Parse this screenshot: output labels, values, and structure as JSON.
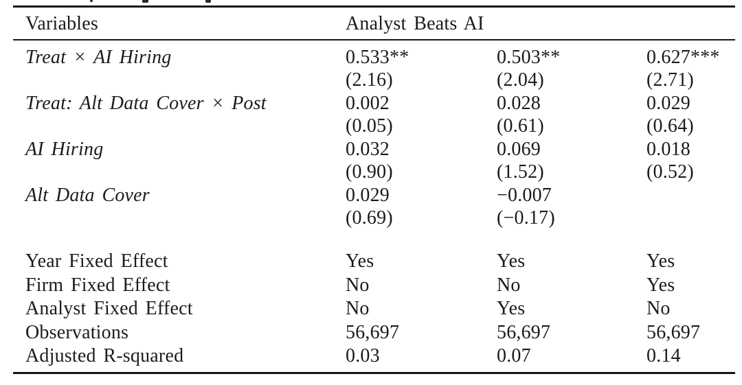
{
  "colors": {
    "background": "#ffffff",
    "text": "#1b1b1b",
    "rule": "#161616"
  },
  "table": {
    "header": {
      "variables_label": "Variables",
      "dependent_label": "Analyst Beats AI"
    },
    "coef_rows": [
      {
        "label": "Treat × AI Hiring",
        "v1": "0.533**",
        "v2": "0.503**",
        "v3": "0.627***"
      },
      {
        "label": "",
        "v1": "(2.16)",
        "v2": "(2.04)",
        "v3": "(2.71)"
      },
      {
        "label": "Treat: Alt Data Cover × Post",
        "v1": "0.002",
        "v2": "0.028",
        "v3": "0.029"
      },
      {
        "label": "",
        "v1": "(0.05)",
        "v2": "(0.61)",
        "v3": "(0.64)"
      },
      {
        "label": "AI Hiring",
        "v1": "0.032",
        "v2": "0.069",
        "v3": "0.018"
      },
      {
        "label": "",
        "v1": "(0.90)",
        "v2": "(1.52)",
        "v3": "(0.52)"
      },
      {
        "label": "Alt Data Cover",
        "v1": "0.029",
        "v2": "−0.007",
        "v3": ""
      },
      {
        "label": "",
        "v1": "(0.69)",
        "v2": "(−0.17)",
        "v3": ""
      }
    ],
    "stat_rows": [
      {
        "label": "Year Fixed Effect",
        "v1": "Yes",
        "v2": "Yes",
        "v3": "Yes"
      },
      {
        "label": "Firm Fixed Effect",
        "v1": "No",
        "v2": "No",
        "v3": "Yes"
      },
      {
        "label": "Analyst Fixed Effect",
        "v1": "No",
        "v2": "Yes",
        "v3": "No"
      },
      {
        "label": "Observations",
        "v1": "56,697",
        "v2": "56,697",
        "v3": "56,697"
      },
      {
        "label": "Adjusted R-squared",
        "v1": "0.03",
        "v2": "0.07",
        "v3": "0.14"
      }
    ]
  }
}
